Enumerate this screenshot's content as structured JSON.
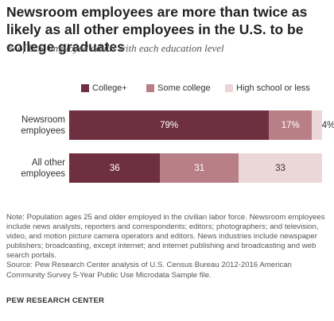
{
  "title": "Newsroom employees are more than twice as likely as all other employees in the U.S. to be college graduates",
  "subtitle": "% of U.S. employed adults with each education level",
  "chart_data": {
    "type": "bar",
    "orientation": "horizontal",
    "stacked": true,
    "categories": [
      "Newsroom employees",
      "All other employees"
    ],
    "category_lines": [
      [
        "Newsroom",
        "employees"
      ],
      [
        "All other",
        "employees"
      ]
    ],
    "series": [
      {
        "name": "College+",
        "color": "#6e3040",
        "text_color": "#ffffff",
        "values": [
          79,
          36
        ],
        "labels": [
          "79%",
          "36"
        ]
      },
      {
        "name": "Some college",
        "color": "#b97f86",
        "text_color": "#ffffff",
        "values": [
          17,
          31
        ],
        "labels": [
          "17%",
          "31"
        ]
      },
      {
        "name": "High school or less",
        "color": "#ecd7d8",
        "text_color": "#333333",
        "values": [
          4,
          33
        ],
        "labels": [
          "4%",
          "33"
        ]
      }
    ],
    "xlim": [
      0,
      100
    ],
    "legend_position": "top",
    "grid": false
  },
  "note": "Note: Population ages 25 and older employed in the civilian labor force. Newsroom employees include news analysts, reporters and correspondents; editors; photographers; and television, video, and motion picture camera operators and editors. News industries include newspaper publishers; broadcasting, except internet; and internet publishing and broadcasting and web search portals.",
  "source": "Source: Pew Research Center analysis of U.S. Census Bureau 2012-2016 American Community Survey 5-Year Public Use Microdata Sample file.",
  "logo": "PEW RESEARCH CENTER"
}
